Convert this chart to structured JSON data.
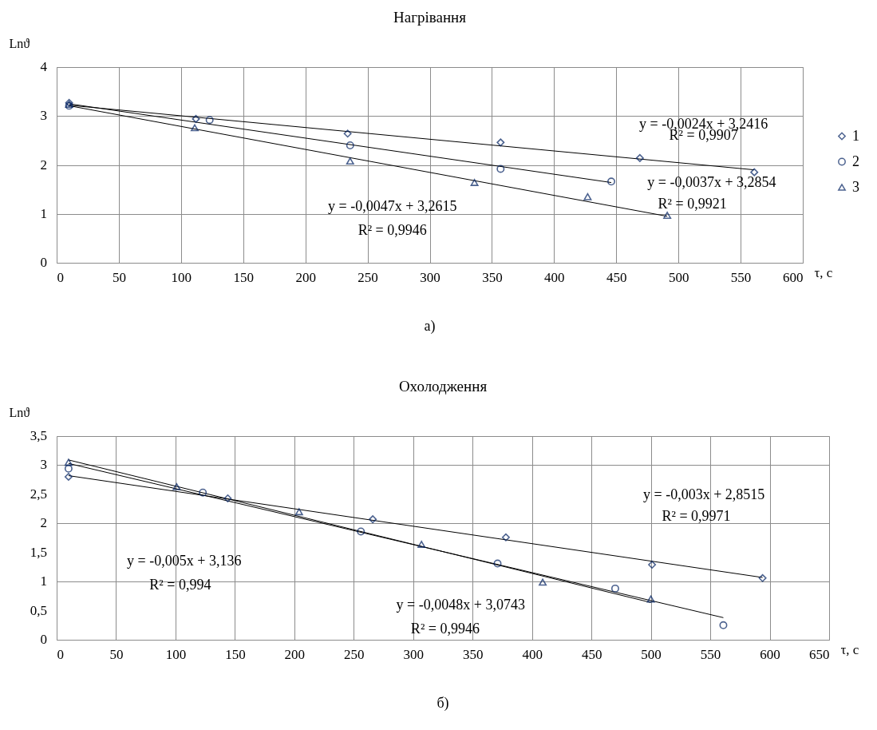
{
  "chart_data": [
    {
      "type": "scatter",
      "title": "Нагрівання",
      "xlabel": "τ, с",
      "ylabel": "Lnϑ",
      "xlim": [
        0,
        600
      ],
      "xticks": [
        0,
        50,
        100,
        150,
        200,
        250,
        300,
        350,
        400,
        450,
        500,
        550,
        600
      ],
      "ylim": [
        0,
        4
      ],
      "yticks": [
        0,
        1,
        2,
        3,
        4
      ],
      "grid": true,
      "legend": "right",
      "series": [
        {
          "type": "line",
          "color": "#000000",
          "x": [
            10,
            561
          ],
          "values": [
            3.22,
            1.9
          ]
        },
        {
          "type": "line",
          "color": "#000000",
          "x": [
            10,
            446
          ],
          "values": [
            3.25,
            1.64
          ]
        },
        {
          "type": "line",
          "color": "#000000",
          "x": [
            10,
            491
          ],
          "values": [
            3.21,
            0.95
          ]
        },
        {
          "type": "scatter",
          "name": "1",
          "color": "#002060",
          "marker": "diamond",
          "x": [
            10,
            112,
            234,
            357,
            469,
            561
          ],
          "values": [
            3.27,
            2.94,
            2.64,
            2.46,
            2.14,
            1.85
          ]
        },
        {
          "type": "scatter",
          "name": "2",
          "color": "#002060",
          "marker": "circle",
          "x": [
            10,
            123,
            236,
            357,
            446
          ],
          "values": [
            3.21,
            2.92,
            2.4,
            1.92,
            1.66
          ]
        },
        {
          "type": "scatter",
          "name": "3",
          "color": "#002060",
          "marker": "triangle",
          "x": [
            10,
            111,
            236,
            336,
            427,
            491
          ],
          "values": [
            3.24,
            2.76,
            2.08,
            1.64,
            1.35,
            0.97
          ]
        }
      ],
      "annotations": [
        "y = -0,0024x + 3,2416",
        "R² = 0,9907",
        "y = -0,0037x + 3,2854",
        "R² = 0,9921",
        "y = -0,0047x + 3,2615",
        "R² = 0,9946",
        "а)"
      ]
    },
    {
      "type": "scatter",
      "title": "Охолодження",
      "xlabel": "τ, с",
      "ylabel": "Lnϑ",
      "xlim": [
        0,
        650
      ],
      "xticks": [
        0,
        50,
        100,
        150,
        200,
        250,
        300,
        350,
        400,
        450,
        500,
        550,
        600,
        650
      ],
      "ylim": [
        0,
        3.5
      ],
      "yticks": [
        0,
        {
          "value": 0.5,
          "label": "0,5"
        },
        1,
        {
          "value": 1.5,
          "label": "1,5"
        },
        2,
        {
          "value": 2.5,
          "label": "2,5"
        },
        3,
        {
          "value": 3.5,
          "label": "3,5"
        }
      ],
      "grid": true,
      "legend": "right",
      "series": [
        {
          "type": "line",
          "color": "#000000",
          "x": [
            10,
            594
          ],
          "values": [
            2.82,
            1.07
          ]
        },
        {
          "type": "line",
          "color": "#000000",
          "x": [
            10,
            561
          ],
          "values": [
            3.03,
            0.38
          ]
        },
        {
          "type": "line",
          "color": "#000000",
          "x": [
            10,
            500
          ],
          "values": [
            3.09,
            0.64
          ]
        },
        {
          "type": "scatter",
          "name": "1",
          "color": "#002060",
          "marker": "diamond",
          "x": [
            10,
            144,
            266,
            378,
            501,
            594
          ],
          "values": [
            2.8,
            2.43,
            2.07,
            1.76,
            1.29,
            1.06
          ]
        },
        {
          "type": "scatter",
          "name": "2",
          "color": "#002060",
          "marker": "circle",
          "x": [
            10,
            123,
            256,
            371,
            470,
            561
          ],
          "values": [
            2.94,
            2.53,
            1.86,
            1.31,
            0.88,
            0.25
          ]
        },
        {
          "type": "scatter",
          "name": "3",
          "color": "#002060",
          "marker": "triangle",
          "x": [
            10,
            101,
            204,
            307,
            409,
            500
          ],
          "values": [
            3.05,
            2.63,
            2.2,
            1.64,
            0.99,
            0.7
          ]
        }
      ],
      "annotations": [
        "y = -0,003x + 2,8515",
        "R² = 0,9971",
        "y = -0,005x + 3,136",
        "R² = 0,994",
        "y = -0,0048x + 3,0743",
        "R² = 0,9946",
        "б)"
      ]
    }
  ]
}
